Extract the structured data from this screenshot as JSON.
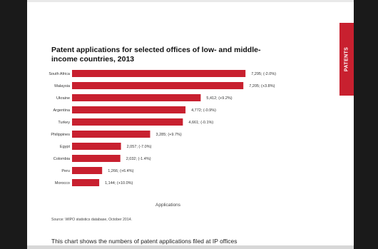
{
  "side_tab": {
    "label": "PATENTS",
    "color": "#c8202f"
  },
  "source": "Source: WIPO statistics database, October 2014.",
  "caption": "This chart shows the numbers of patent applications filed at IP offices",
  "chart_data": {
    "type": "bar",
    "orientation": "horizontal",
    "title": "Patent applications for selected offices of low- and middle-income countries, 2013",
    "xlabel": "Applications",
    "ylabel": "",
    "xlim": [
      0,
      7800
    ],
    "grid": false,
    "bar_color": "#c8202f",
    "categories": [
      "South Africa",
      "Malaysia",
      "Ukraine",
      "Argentina",
      "Turkey",
      "Philippines",
      "Egypt",
      "Colombia",
      "Peru",
      "Morocco"
    ],
    "values": [
      7295,
      7205,
      5412,
      4772,
      4661,
      3285,
      2057,
      2032,
      1266,
      1144
    ],
    "value_labels": [
      "7,295; (-2.0%)",
      "7,205; (+3.8%)",
      "5,412; (+9.2%)",
      "4,772; (-0.9%)",
      "4,661; (-0.1%)",
      "3,285; (+9.7%)",
      "2,057; (-7.0%)",
      "2,032; (-1.4%)",
      "1,266; (+6.4%)",
      "1,144; (+10.0%)"
    ]
  }
}
